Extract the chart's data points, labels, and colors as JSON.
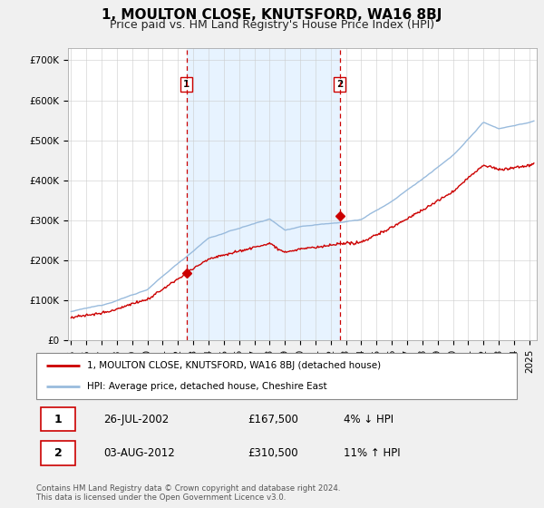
{
  "title": "1, MOULTON CLOSE, KNUTSFORD, WA16 8BJ",
  "subtitle": "Price paid vs. HM Land Registry's House Price Index (HPI)",
  "ylabel_ticks": [
    "£0",
    "£100K",
    "£200K",
    "£300K",
    "£400K",
    "£500K",
    "£600K",
    "£700K"
  ],
  "ytick_values": [
    0,
    100000,
    200000,
    300000,
    400000,
    500000,
    600000,
    700000
  ],
  "ylim": [
    0,
    730000
  ],
  "xlim_start": 1994.8,
  "xlim_end": 2025.5,
  "purchase1_date": 2002.55,
  "purchase1_price": 167500,
  "purchase2_date": 2012.59,
  "purchase2_price": 310500,
  "vline1_x": 2002.55,
  "vline2_x": 2012.59,
  "property_color": "#cc0000",
  "hpi_color": "#99bbdd",
  "shade_color": "#ddeeff",
  "vline_color": "#cc0000",
  "background_color": "#f0f0f0",
  "plot_bg_color": "#ffffff",
  "legend_label1": "1, MOULTON CLOSE, KNUTSFORD, WA16 8BJ (detached house)",
  "legend_label2": "HPI: Average price, detached house, Cheshire East",
  "annotation1_label": "1",
  "annotation2_label": "2",
  "table_row1": [
    "1",
    "26-JUL-2002",
    "£167,500",
    "4% ↓ HPI"
  ],
  "table_row2": [
    "2",
    "03-AUG-2012",
    "£310,500",
    "11% ↑ HPI"
  ],
  "footer": "Contains HM Land Registry data © Crown copyright and database right 2024.\nThis data is licensed under the Open Government Licence v3.0.",
  "title_fontsize": 11,
  "subtitle_fontsize": 9,
  "tick_fontsize": 7.5,
  "ann_y": 640000
}
